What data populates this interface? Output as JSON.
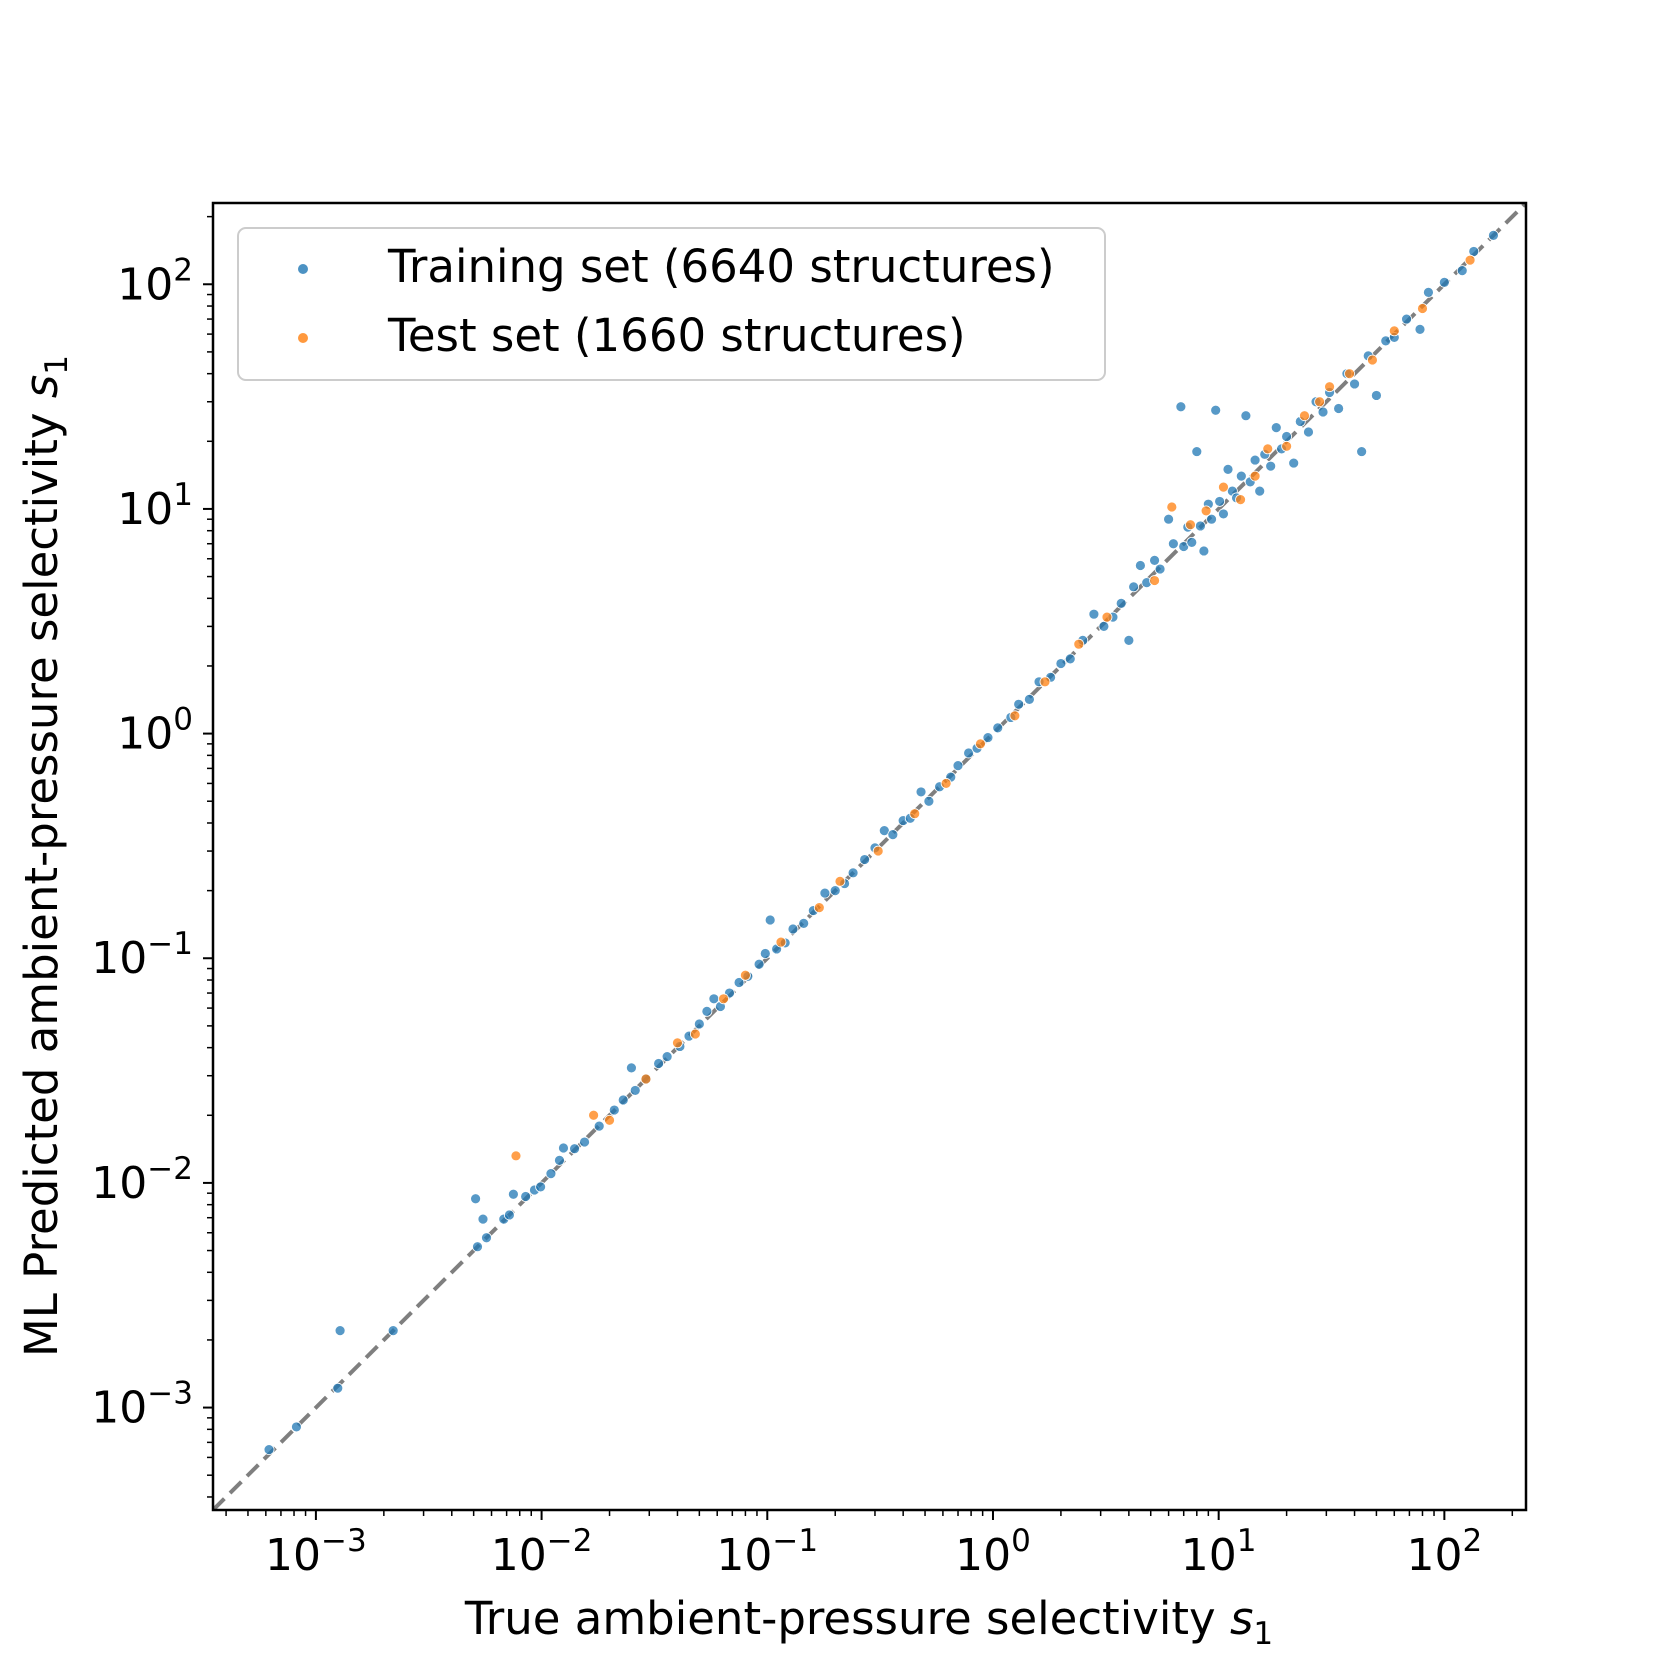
{
  "chart_data": {
    "type": "scatter",
    "xlabel": "True ambient-pressure selectivity",
    "ylabel": "ML Predicted ambient-pressure selectivity",
    "label_symbol": "s",
    "label_subscript": "1",
    "x_scale": "log",
    "y_scale": "log",
    "xlim": [
      0.00035,
      230
    ],
    "ylim": [
      0.00035,
      230
    ],
    "grid": false,
    "legend_position": "top-left",
    "tick_base": "10",
    "ticks": [
      {
        "value": 0.001,
        "exp": "−3"
      },
      {
        "value": 0.01,
        "exp": "−2"
      },
      {
        "value": 0.1,
        "exp": "−1"
      },
      {
        "value": 1,
        "exp": "0"
      },
      {
        "value": 10,
        "exp": "1"
      },
      {
        "value": 100,
        "exp": "2"
      }
    ],
    "reference_line": {
      "style": "dashed",
      "color": "#7f7f7f",
      "relation": "y = x"
    },
    "series": [
      {
        "name": "Training set (6640 structures)",
        "color": "#1f77b4",
        "points": [
          [
            0.00062,
            0.00065
          ],
          [
            0.00082,
            0.00082
          ],
          [
            0.00125,
            0.00122
          ],
          [
            0.00128,
            0.0022
          ],
          [
            0.0022,
            0.0022
          ],
          [
            0.0051,
            0.0085
          ],
          [
            0.0052,
            0.0052
          ],
          [
            0.0055,
            0.0069
          ],
          [
            0.0057,
            0.0057
          ],
          [
            0.0068,
            0.0069
          ],
          [
            0.0072,
            0.0072
          ],
          [
            0.0075,
            0.0089
          ],
          [
            0.0085,
            0.0087
          ],
          [
            0.0093,
            0.0093
          ],
          [
            0.0099,
            0.0096
          ],
          [
            0.011,
            0.011
          ],
          [
            0.012,
            0.0126
          ],
          [
            0.0125,
            0.0143
          ],
          [
            0.014,
            0.0142
          ],
          [
            0.0155,
            0.0152
          ],
          [
            0.018,
            0.0179
          ],
          [
            0.021,
            0.0211
          ],
          [
            0.023,
            0.0234
          ],
          [
            0.025,
            0.0325
          ],
          [
            0.026,
            0.0258
          ],
          [
            0.029,
            0.029
          ],
          [
            0.033,
            0.034
          ],
          [
            0.036,
            0.0365
          ],
          [
            0.041,
            0.0405
          ],
          [
            0.045,
            0.045
          ],
          [
            0.05,
            0.051
          ],
          [
            0.054,
            0.058
          ],
          [
            0.058,
            0.066
          ],
          [
            0.062,
            0.061
          ],
          [
            0.068,
            0.07
          ],
          [
            0.075,
            0.078
          ],
          [
            0.082,
            0.083
          ],
          [
            0.092,
            0.094
          ],
          [
            0.098,
            0.105
          ],
          [
            0.103,
            0.148
          ],
          [
            0.11,
            0.11
          ],
          [
            0.12,
            0.117
          ],
          [
            0.13,
            0.135
          ],
          [
            0.145,
            0.143
          ],
          [
            0.16,
            0.163
          ],
          [
            0.18,
            0.195
          ],
          [
            0.2,
            0.2
          ],
          [
            0.22,
            0.215
          ],
          [
            0.24,
            0.24
          ],
          [
            0.27,
            0.275
          ],
          [
            0.3,
            0.31
          ],
          [
            0.33,
            0.37
          ],
          [
            0.36,
            0.355
          ],
          [
            0.4,
            0.41
          ],
          [
            0.43,
            0.42
          ],
          [
            0.48,
            0.55
          ],
          [
            0.52,
            0.5
          ],
          [
            0.58,
            0.58
          ],
          [
            0.65,
            0.64
          ],
          [
            0.7,
            0.72
          ],
          [
            0.78,
            0.82
          ],
          [
            0.85,
            0.86
          ],
          [
            0.95,
            0.96
          ],
          [
            1.05,
            1.06
          ],
          [
            1.2,
            1.18
          ],
          [
            1.3,
            1.35
          ],
          [
            1.45,
            1.42
          ],
          [
            1.6,
            1.7
          ],
          [
            1.8,
            1.78
          ],
          [
            2.0,
            2.05
          ],
          [
            2.2,
            2.15
          ],
          [
            2.5,
            2.6
          ],
          [
            2.8,
            3.4
          ],
          [
            3.1,
            3.0
          ],
          [
            3.4,
            3.3
          ],
          [
            3.7,
            3.8
          ],
          [
            4.0,
            2.6
          ],
          [
            4.2,
            4.5
          ],
          [
            4.5,
            5.6
          ],
          [
            4.8,
            4.7
          ],
          [
            5.2,
            5.9
          ],
          [
            5.5,
            5.4
          ],
          [
            6.0,
            9.0
          ],
          [
            6.3,
            7.0
          ],
          [
            6.8,
            28.5
          ],
          [
            7.0,
            6.8
          ],
          [
            7.3,
            8.3
          ],
          [
            7.6,
            7.1
          ],
          [
            8.0,
            18.0
          ],
          [
            8.3,
            8.4
          ],
          [
            8.6,
            6.5
          ],
          [
            9.0,
            10.5
          ],
          [
            9.3,
            9.0
          ],
          [
            9.7,
            27.5
          ],
          [
            10.1,
            10.8
          ],
          [
            10.5,
            9.5
          ],
          [
            11.0,
            15.0
          ],
          [
            11.5,
            12.0
          ],
          [
            12.0,
            11.2
          ],
          [
            12.6,
            14.0
          ],
          [
            13.2,
            26.0
          ],
          [
            13.8,
            13.2
          ],
          [
            14.5,
            16.5
          ],
          [
            15.2,
            12.0
          ],
          [
            16.0,
            17.5
          ],
          [
            17.0,
            15.5
          ],
          [
            18.0,
            23.0
          ],
          [
            19.0,
            18.5
          ],
          [
            20.0,
            21.0
          ],
          [
            21.5,
            16.0
          ],
          [
            23.0,
            24.5
          ],
          [
            25.0,
            22.0
          ],
          [
            27.0,
            30.0
          ],
          [
            29.0,
            27.0
          ],
          [
            31.0,
            33.0
          ],
          [
            34.0,
            28.0
          ],
          [
            37.0,
            40.0
          ],
          [
            40.0,
            36.0
          ],
          [
            43.0,
            18.0
          ],
          [
            46.0,
            48.0
          ],
          [
            50.0,
            32.0
          ],
          [
            55.0,
            56.0
          ],
          [
            60.0,
            58.0
          ],
          [
            68.0,
            70.0
          ],
          [
            78.0,
            63.0
          ],
          [
            85.0,
            92.0
          ],
          [
            100.0,
            102.0
          ],
          [
            120.0,
            115.0
          ],
          [
            135.0,
            140.0
          ],
          [
            165.0,
            165.0
          ]
        ]
      },
      {
        "name": "Test set (1660 structures)",
        "color": "#ff7f0e",
        "points": [
          [
            0.0077,
            0.0132
          ],
          [
            0.017,
            0.02
          ],
          [
            0.02,
            0.019
          ],
          [
            0.029,
            0.029
          ],
          [
            0.04,
            0.042
          ],
          [
            0.048,
            0.046
          ],
          [
            0.064,
            0.066
          ],
          [
            0.08,
            0.084
          ],
          [
            0.115,
            0.118
          ],
          [
            0.17,
            0.168
          ],
          [
            0.21,
            0.22
          ],
          [
            0.31,
            0.3
          ],
          [
            0.45,
            0.44
          ],
          [
            0.62,
            0.6
          ],
          [
            0.88,
            0.9
          ],
          [
            1.25,
            1.2
          ],
          [
            1.7,
            1.7
          ],
          [
            2.4,
            2.5
          ],
          [
            3.2,
            3.3
          ],
          [
            5.2,
            4.8
          ],
          [
            6.2,
            10.2
          ],
          [
            7.5,
            8.5
          ],
          [
            8.8,
            9.8
          ],
          [
            10.5,
            12.5
          ],
          [
            12.5,
            11.0
          ],
          [
            14.5,
            14.0
          ],
          [
            16.5,
            18.5
          ],
          [
            20.0,
            19.0
          ],
          [
            24.0,
            26.0
          ],
          [
            28.0,
            30.0
          ],
          [
            31.0,
            35.0
          ],
          [
            38.0,
            40.0
          ],
          [
            48.0,
            46.0
          ],
          [
            60.0,
            62.0
          ],
          [
            80.0,
            78.0
          ],
          [
            130.0,
            128.0
          ]
        ]
      }
    ]
  }
}
